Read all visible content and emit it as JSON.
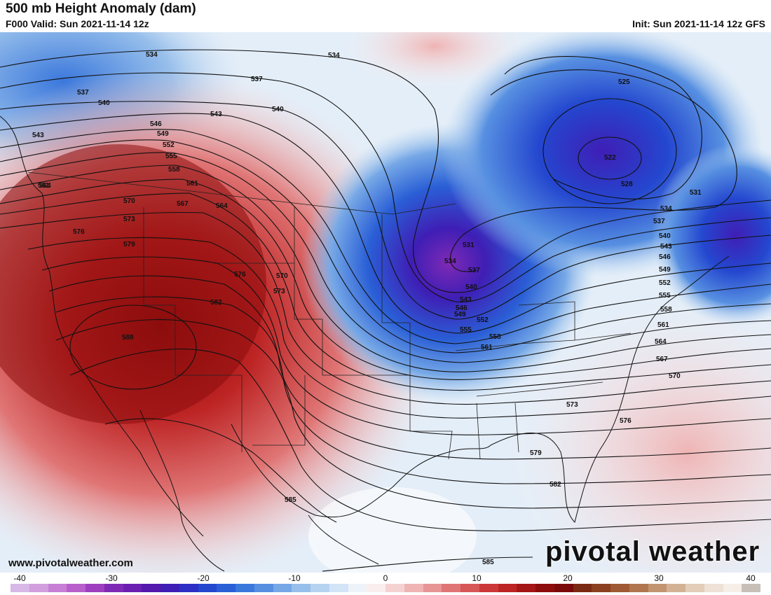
{
  "header": {
    "title": "500 mb Height Anomaly (dam)",
    "valid": "F000 Valid: Sun 2021-11-14 12z",
    "init": "Init: Sun 2021-11-14 12z GFS"
  },
  "footer": {
    "url": "www.pivotalweather.com",
    "logo": "pivotal weather"
  },
  "colorbar": {
    "ticks": [
      "-40",
      "-30",
      "-20",
      "-10",
      "0",
      "10",
      "20",
      "30",
      "40"
    ],
    "colors": [
      "#d7b8e6",
      "#d29ede",
      "#c77fd6",
      "#b85fcc",
      "#9e3fbf",
      "#7f2ab5",
      "#6a1fb0",
      "#5419ad",
      "#3f1eb5",
      "#2e2fc4",
      "#2447cf",
      "#2a5fd6",
      "#3b78dc",
      "#5790e1",
      "#76a8e6",
      "#97bfeb",
      "#b5d3f1",
      "#d2e4f6",
      "#eef3f9",
      "#fbeeee",
      "#f5d2d2",
      "#efb4b4",
      "#e89595",
      "#e07575",
      "#d75656",
      "#cc3838",
      "#bd2424",
      "#a51616",
      "#8d0d0d",
      "#7a0a0a",
      "#7a2a12",
      "#8c4020",
      "#9e5a34",
      "#b07650",
      "#c29470",
      "#d3b294",
      "#e2cdb8",
      "#eee2d6",
      "#f6efe8",
      "#c8c0b8"
    ]
  },
  "contours": [
    {
      "label": "522"
    },
    {
      "label": "525"
    },
    {
      "label": "528"
    },
    {
      "label": "531"
    },
    {
      "label": "534"
    },
    {
      "label": "537"
    },
    {
      "label": "540"
    },
    {
      "label": "543"
    },
    {
      "label": "546"
    },
    {
      "label": "549"
    },
    {
      "label": "552"
    },
    {
      "label": "555"
    },
    {
      "label": "558"
    },
    {
      "label": "561"
    },
    {
      "label": "564"
    },
    {
      "label": "567"
    },
    {
      "label": "570"
    },
    {
      "label": "573"
    },
    {
      "label": "576"
    },
    {
      "label": "579"
    },
    {
      "label": "582"
    },
    {
      "label": "585"
    },
    {
      "label": "588"
    }
  ],
  "anomaly_features": [
    {
      "name": "eastern-canada-low",
      "sign": "negative",
      "color": "#2f33c8"
    },
    {
      "name": "great-lakes-trough",
      "sign": "negative",
      "color": "#6a1fb0"
    },
    {
      "name": "western-us-ridge",
      "sign": "positive",
      "color": "#a51616"
    },
    {
      "name": "subtropical-atlantic",
      "sign": "positive",
      "color": "#efb4b4"
    }
  ]
}
